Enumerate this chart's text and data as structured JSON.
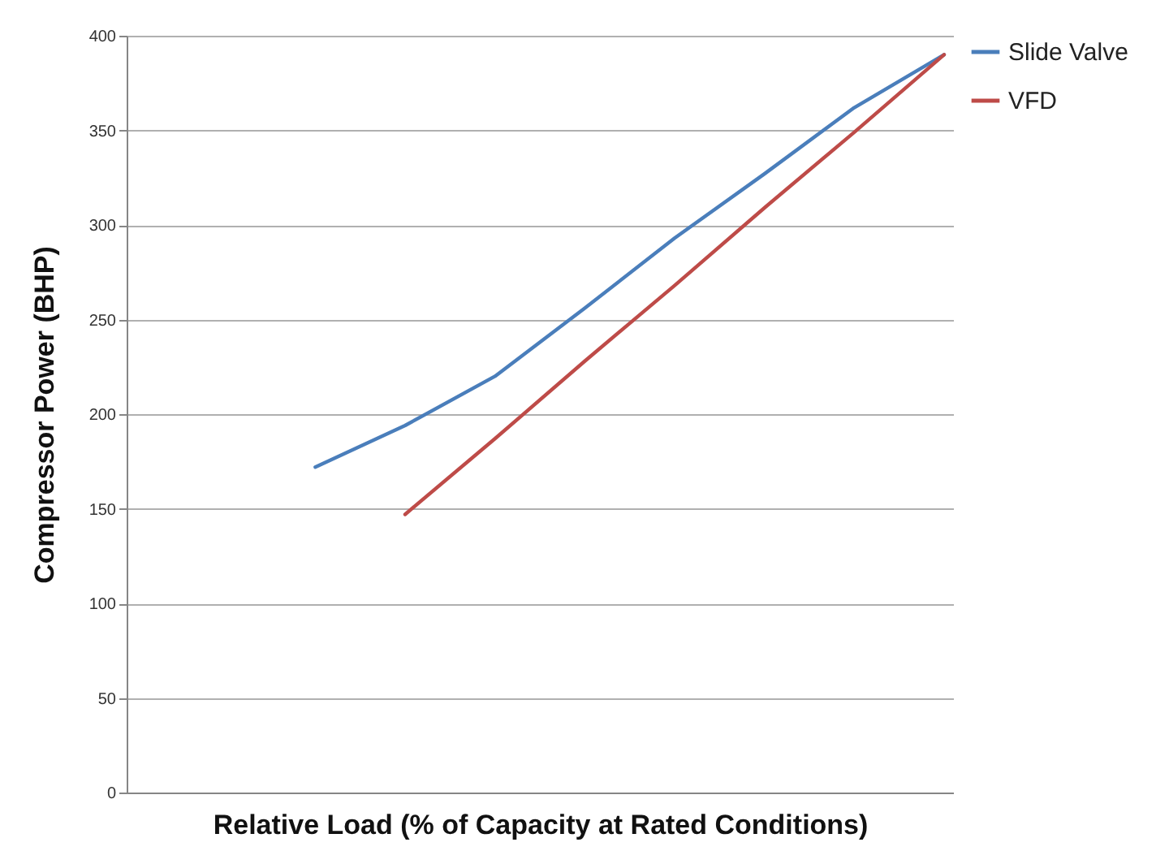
{
  "chart_data": {
    "type": "line",
    "xlabel": "Relative Load (% of Capacity at Rated Conditions)",
    "ylabel": "Compressor Power (BHP)",
    "categories": [
      null,
      null,
      null,
      null,
      null,
      null,
      null,
      null,
      null,
      null
    ],
    "series": [
      {
        "name": "Slide Valve",
        "color": "#4a7ebb",
        "values": [
          null,
          null,
          172,
          194,
          220,
          256,
          293,
          327,
          362,
          390
        ]
      },
      {
        "name": "VFD",
        "color": "#be4b48",
        "values": [
          null,
          null,
          null,
          147,
          187,
          228,
          268,
          309,
          349,
          390
        ]
      }
    ],
    "ylim": [
      0,
      400
    ],
    "yticks": [
      0,
      50,
      100,
      150,
      200,
      250,
      300,
      350,
      400
    ],
    "grid": "y",
    "legend": "right",
    "tick_labels": "y",
    "marker": "none",
    "line_style": "solid"
  }
}
